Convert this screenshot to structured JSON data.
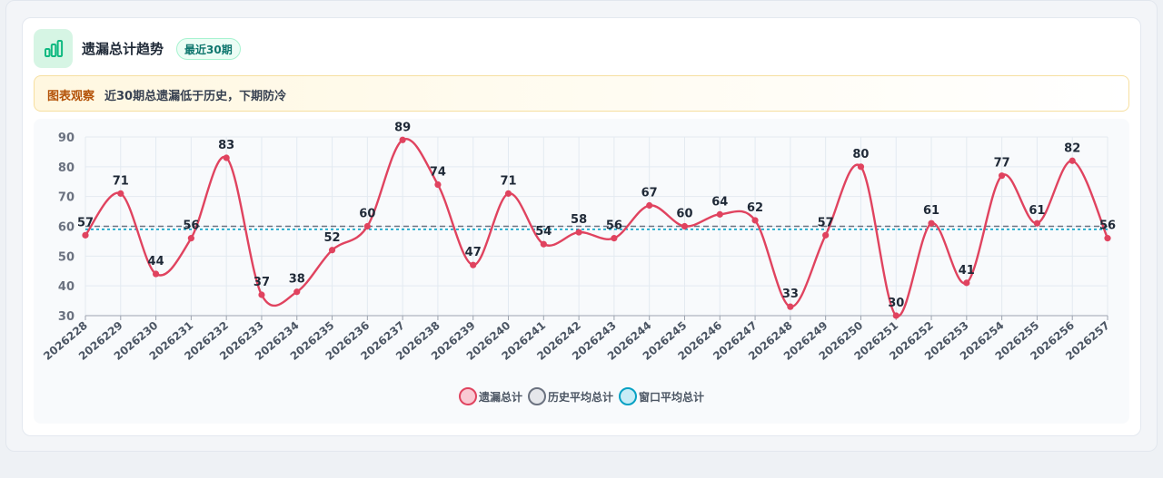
{
  "header": {
    "title": "遗漏总计趋势",
    "badge": "最近30期",
    "icon": "bar-chart-icon"
  },
  "insight": {
    "label": "图表观察",
    "text": "近30期总遗漏低于历史，下期防冷"
  },
  "colors": {
    "series": "#e0435f",
    "historical": "#6b7280",
    "window": "#06a1c4",
    "accent": "#10b981"
  },
  "chart_data": {
    "type": "line",
    "categories": [
      "2026228",
      "2026229",
      "2026230",
      "2026231",
      "2026232",
      "2026233",
      "2026234",
      "2026235",
      "2026236",
      "2026237",
      "2026238",
      "2026239",
      "2026240",
      "2026241",
      "2026242",
      "2026243",
      "2026244",
      "2026245",
      "2026246",
      "2026247",
      "2026248",
      "2026249",
      "2026250",
      "2026251",
      "2026252",
      "2026253",
      "2026254",
      "2026255",
      "2026256",
      "2026257"
    ],
    "series": [
      {
        "name": "遗漏总计",
        "values": [
          57,
          71,
          44,
          56,
          83,
          37,
          38,
          52,
          60,
          89,
          74,
          47,
          71,
          54,
          58,
          56,
          67,
          60,
          64,
          62,
          33,
          57,
          80,
          30,
          61,
          41,
          77,
          61,
          82,
          56
        ]
      }
    ],
    "reference_lines": [
      {
        "name": "历史平均总计",
        "value": 60
      },
      {
        "name": "窗口平均总计",
        "value": 59
      }
    ],
    "yticks": [
      30,
      40,
      50,
      60,
      70,
      80,
      90
    ],
    "ylim": [
      30,
      90
    ],
    "grid": true,
    "legend_position": "bottom-center",
    "data_labels": true
  }
}
